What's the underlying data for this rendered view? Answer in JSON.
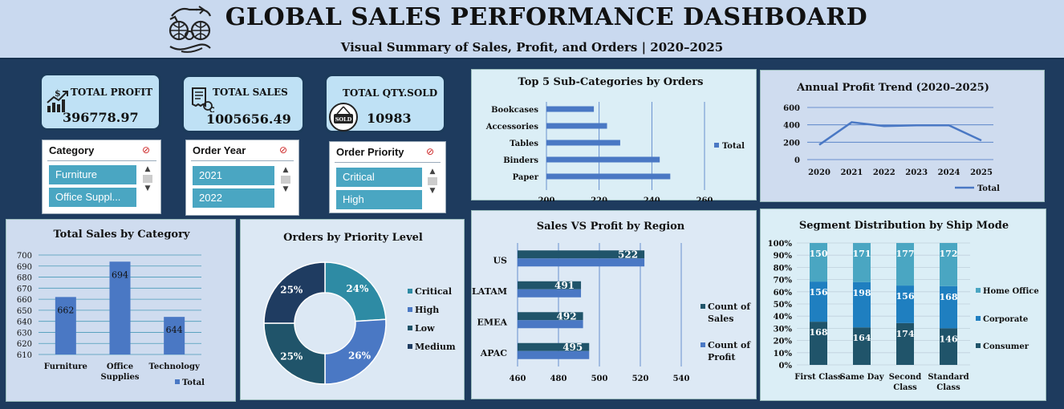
{
  "header": {
    "title": "GLOBAL SALES PERFORMANCE DASHBOARD",
    "subtitle": "Visual Summary of Sales, Profit, and Orders | 2020–2025"
  },
  "kpis": {
    "profit": {
      "label": "TOTAL PROFIT",
      "value": "396778.97"
    },
    "sales": {
      "label": "TOTAL SALES",
      "value": "1005656.49"
    },
    "qty": {
      "label": "TOTAL QTY.SOLD",
      "value": "10983",
      "badge": "SOLD"
    }
  },
  "slicers": {
    "category": {
      "title": "Category",
      "items": [
        "Furniture",
        "Office Suppl..."
      ]
    },
    "year": {
      "title": "Order Year",
      "items": [
        "2021",
        "2022"
      ]
    },
    "priority": {
      "title": "Order Priority",
      "items": [
        "Critical",
        "High"
      ]
    }
  },
  "colors": {
    "bar_blue": "#4a78c4",
    "bar_dark": "#20546a",
    "teal": "#2e8ba4",
    "navy": "#1f3c61",
    "light": "#4aa6c2",
    "mid": "#1f7fc0"
  },
  "chart_data": [
    {
      "id": "top5",
      "type": "bar",
      "orientation": "horizontal",
      "title": "Top 5 Sub-Categories by Orders",
      "categories": [
        "Bookcases",
        "Accessories",
        "Tables",
        "Binders",
        "Paper"
      ],
      "values": [
        218,
        223,
        228,
        243,
        247
      ],
      "xlim": [
        200,
        260
      ],
      "xticks": [
        "200",
        "220",
        "240",
        "260"
      ],
      "legend": "Total"
    },
    {
      "id": "trend",
      "type": "line",
      "title": "Annual Profit Trend (2020–2025)",
      "x": [
        "2020",
        "2021",
        "2022",
        "2023",
        "2024",
        "2025"
      ],
      "values": [
        170,
        430,
        385,
        395,
        395,
        220
      ],
      "ylim": [
        0,
        600
      ],
      "yticks": [
        "0",
        "200",
        "400",
        "600"
      ],
      "legend": "Total"
    },
    {
      "id": "catsales",
      "type": "bar",
      "title": "Total Sales by Category",
      "categories": [
        "Furniture",
        "Office Supplies",
        "Technology"
      ],
      "cat_lines": [
        [
          "Furniture"
        ],
        [
          "Office",
          "Supplies"
        ],
        [
          "Technology"
        ]
      ],
      "values": [
        662,
        694,
        644
      ],
      "value_labels": [
        "662",
        "694",
        "644"
      ],
      "ylim": [
        610,
        700
      ],
      "yticks": [
        "610",
        "620",
        "630",
        "640",
        "650",
        "660",
        "670",
        "680",
        "690",
        "700"
      ],
      "legend": "Total"
    },
    {
      "id": "priority",
      "type": "pie",
      "title": "Orders by Priority Level",
      "labels": [
        "Critical",
        "High",
        "Low",
        "Medium"
      ],
      "values": [
        24,
        26,
        25,
        25
      ],
      "value_labels": [
        "24%",
        "26%",
        "25%",
        "25%"
      ]
    },
    {
      "id": "region",
      "type": "bar",
      "orientation": "horizontal",
      "title": "Sales VS Profit by Region",
      "categories": [
        "US",
        "LATAM",
        "EMEA",
        "APAC"
      ],
      "series": [
        {
          "name": "Count of Sales",
          "values": [
            522,
            491,
            492,
            495
          ],
          "labels": [
            "522",
            "491",
            "492",
            "495"
          ]
        },
        {
          "name": "Count of Profit",
          "values": [
            522,
            491,
            492,
            495
          ]
        }
      ],
      "xlim": [
        460,
        540
      ],
      "xticks": [
        "460",
        "480",
        "500",
        "520",
        "540"
      ],
      "legend_lines": [
        [
          "Count of",
          "Sales"
        ],
        [
          "Count of",
          "Profit"
        ]
      ]
    },
    {
      "id": "ship",
      "type": "bar",
      "stacked": "percent",
      "title": "Segment Distribution by Ship Mode",
      "categories": [
        "First Class",
        "Same Day",
        "Second Class",
        "Standard Class"
      ],
      "cat_lines": [
        [
          "First Class"
        ],
        [
          "Same Day"
        ],
        [
          "Second",
          "Class"
        ],
        [
          "Standard",
          "Class"
        ]
      ],
      "series": [
        {
          "name": "Consumer",
          "values": [
            168,
            164,
            174,
            146
          ]
        },
        {
          "name": "Corporate",
          "values": [
            156,
            198,
            156,
            168
          ]
        },
        {
          "name": "Home Office",
          "values": [
            150,
            171,
            177,
            172
          ]
        }
      ],
      "yticks": [
        "0%",
        "10%",
        "20%",
        "30%",
        "40%",
        "50%",
        "60%",
        "70%",
        "80%",
        "90%",
        "100%"
      ]
    }
  ]
}
